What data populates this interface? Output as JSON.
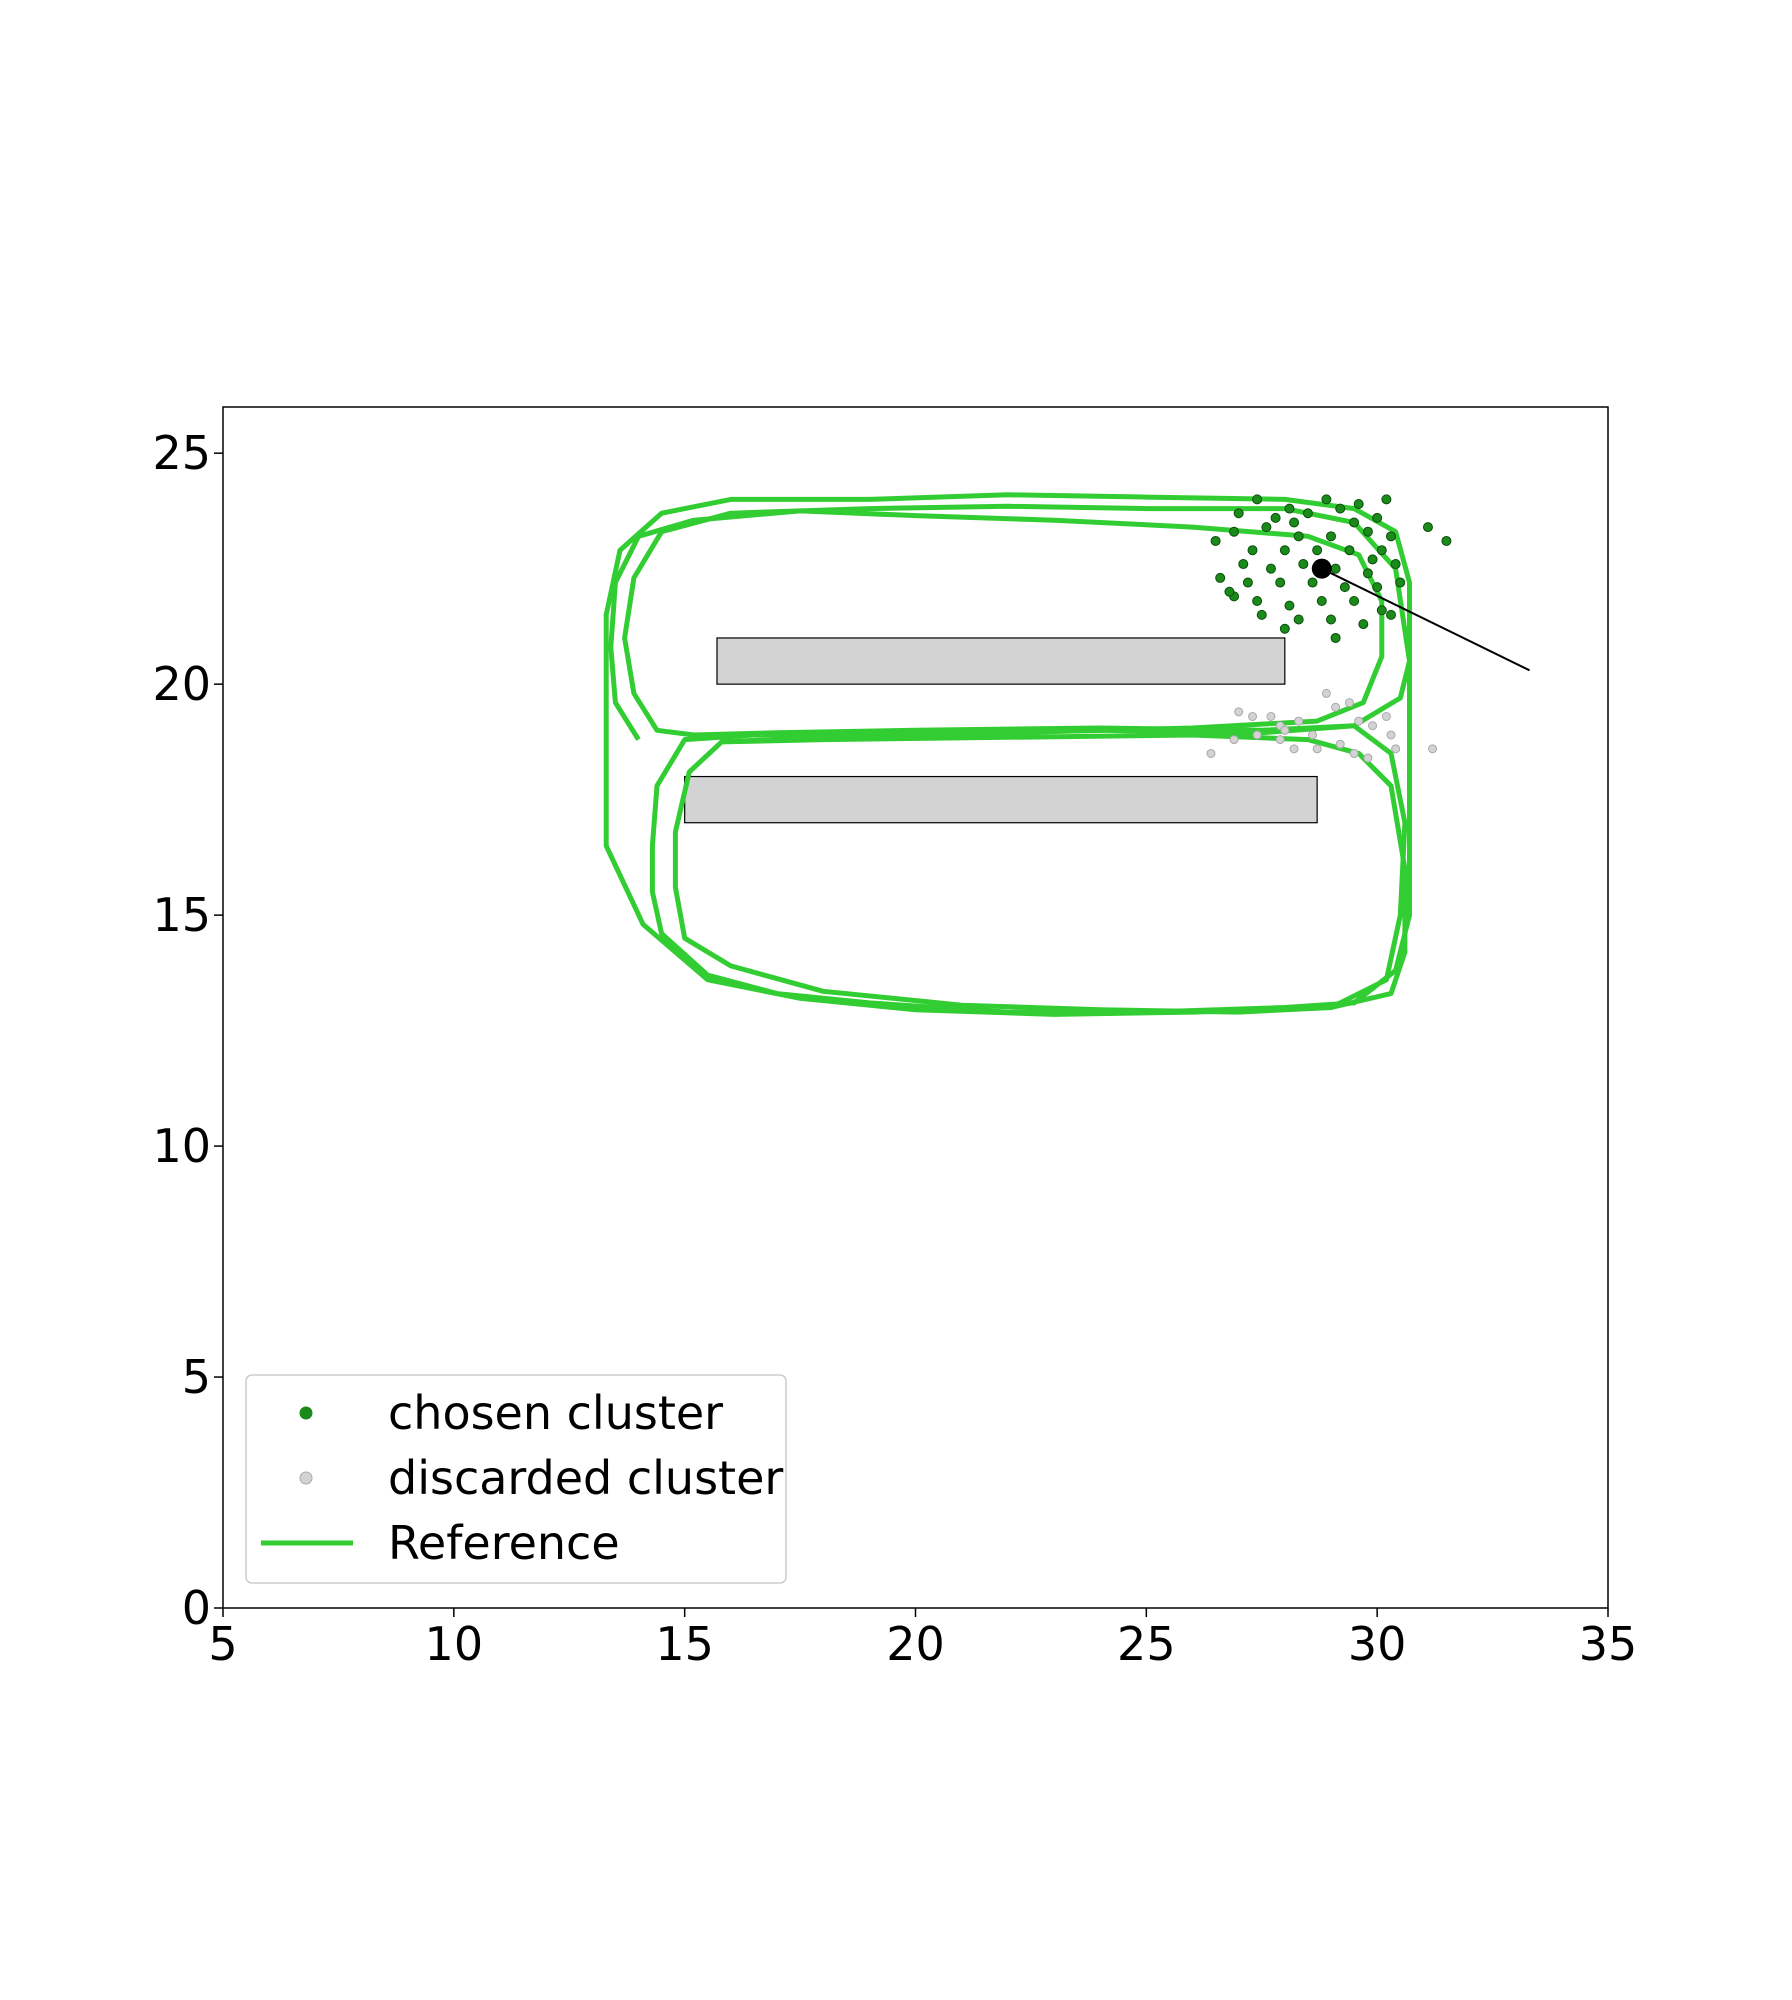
{
  "chart_data": {
    "type": "scatter",
    "title": "",
    "xlabel": "",
    "ylabel": "",
    "xlim": [
      5,
      35
    ],
    "ylim": [
      0,
      26
    ],
    "xticks": [
      5,
      10,
      15,
      20,
      25,
      30,
      35
    ],
    "yticks": [
      0,
      5,
      10,
      15,
      20,
      25
    ],
    "grid": false,
    "legend_position": "lower-left",
    "legend": [
      {
        "label": "chosen cluster",
        "kind": "marker",
        "color": "#1a8a1a"
      },
      {
        "label": "discarded cluster",
        "kind": "marker",
        "color": "#d3d3d3"
      },
      {
        "label": "Reference",
        "kind": "line",
        "color": "#32cd32"
      }
    ],
    "obstacles": [
      {
        "x0": 15.7,
        "y0": 20.0,
        "x1": 28.0,
        "y1": 21.0,
        "fill": "#d3d3d3"
      },
      {
        "x0": 15.0,
        "y0": 17.0,
        "x1": 28.7,
        "y1": 18.0,
        "fill": "#d3d3d3"
      }
    ],
    "estimate": {
      "x": 28.8,
      "y": 22.5,
      "heading_end": [
        33.3,
        20.3
      ],
      "color": "#000000"
    },
    "series": [
      {
        "name": "Reference",
        "color": "#32cd32",
        "points": [
          [
            13.3,
            19.8
          ],
          [
            13.3,
            21.5
          ],
          [
            13.6,
            22.9
          ],
          [
            14.5,
            23.7
          ],
          [
            16.0,
            24.0
          ],
          [
            19.0,
            24.0
          ],
          [
            22.0,
            24.1
          ],
          [
            25.0,
            24.05
          ],
          [
            28.0,
            24.0
          ],
          [
            29.5,
            23.8
          ],
          [
            30.4,
            23.3
          ],
          [
            30.7,
            22.2
          ],
          [
            30.7,
            20.5
          ],
          [
            30.5,
            19.7
          ],
          [
            29.5,
            19.1
          ],
          [
            27.5,
            18.95
          ],
          [
            24.0,
            19.0
          ],
          [
            20.0,
            18.95
          ],
          [
            16.5,
            18.9
          ],
          [
            15.0,
            18.8
          ],
          [
            14.4,
            17.8
          ],
          [
            14.3,
            16.5
          ],
          [
            14.3,
            15.5
          ],
          [
            14.5,
            14.6
          ],
          [
            15.5,
            13.7
          ],
          [
            17.0,
            13.3
          ],
          [
            19.0,
            13.1
          ],
          [
            22.0,
            12.9
          ],
          [
            25.0,
            12.9
          ],
          [
            28.0,
            13.0
          ],
          [
            29.5,
            13.1
          ],
          [
            30.4,
            13.8
          ],
          [
            30.7,
            15.0
          ],
          [
            30.7,
            18.0
          ],
          [
            30.7,
            20.5
          ],
          [
            30.4,
            22.5
          ],
          [
            29.5,
            23.5
          ],
          [
            28.0,
            23.8
          ],
          [
            25.0,
            23.8
          ],
          [
            22.0,
            23.85
          ],
          [
            19.0,
            23.8
          ],
          [
            16.0,
            23.7
          ],
          [
            14.5,
            23.3
          ],
          [
            13.9,
            22.3
          ],
          [
            13.7,
            21.0
          ],
          [
            13.9,
            19.8
          ],
          [
            14.4,
            19.0
          ],
          [
            15.2,
            18.9
          ],
          [
            17.0,
            18.95
          ],
          [
            20.0,
            19.0
          ],
          [
            24.0,
            19.05
          ],
          [
            27.5,
            19.0
          ],
          [
            29.5,
            19.1
          ],
          [
            30.3,
            18.5
          ],
          [
            30.6,
            17.0
          ],
          [
            30.5,
            15.0
          ],
          [
            30.2,
            13.6
          ],
          [
            29.0,
            13.0
          ],
          [
            26.0,
            12.9
          ],
          [
            23.0,
            12.85
          ],
          [
            20.0,
            12.95
          ],
          [
            17.5,
            13.2
          ],
          [
            15.5,
            13.6
          ],
          [
            14.1,
            14.8
          ],
          [
            13.3,
            16.5
          ],
          [
            13.3,
            18.0
          ],
          [
            13.3,
            19.8
          ]
        ]
      },
      {
        "name": "Reference",
        "color": "#32cd32",
        "points": [
          [
            14.0,
            18.8
          ],
          [
            13.5,
            19.6
          ],
          [
            13.4,
            20.8
          ],
          [
            13.5,
            22.2
          ],
          [
            14.0,
            23.2
          ],
          [
            15.2,
            23.55
          ],
          [
            17.5,
            23.75
          ],
          [
            20.0,
            23.65
          ],
          [
            23.0,
            23.55
          ],
          [
            26.0,
            23.4
          ],
          [
            28.5,
            23.2
          ],
          [
            29.6,
            22.8
          ],
          [
            30.1,
            21.8
          ],
          [
            30.1,
            20.6
          ],
          [
            29.7,
            19.6
          ],
          [
            28.7,
            19.2
          ],
          [
            26.0,
            19.05
          ],
          [
            22.0,
            18.95
          ],
          [
            18.0,
            18.85
          ],
          [
            15.8,
            18.75
          ],
          [
            15.1,
            18.1
          ],
          [
            14.8,
            16.8
          ],
          [
            14.8,
            15.6
          ],
          [
            15.0,
            14.5
          ],
          [
            16.0,
            13.9
          ],
          [
            18.0,
            13.35
          ],
          [
            21.0,
            13.05
          ],
          [
            24.0,
            12.95
          ],
          [
            27.0,
            12.9
          ],
          [
            29.0,
            13.0
          ],
          [
            30.3,
            13.3
          ],
          [
            30.6,
            14.2
          ],
          [
            30.6,
            16.0
          ],
          [
            30.3,
            17.8
          ],
          [
            29.6,
            18.5
          ],
          [
            28.5,
            18.8
          ],
          [
            26.0,
            18.9
          ],
          [
            22.0,
            18.85
          ],
          [
            18.0,
            18.8
          ],
          [
            15.8,
            18.75
          ]
        ]
      }
    ],
    "chosen_cluster": [
      [
        27.4,
        24.0
      ],
      [
        28.1,
        23.8
      ],
      [
        27.0,
        23.7
      ],
      [
        27.8,
        23.6
      ],
      [
        28.5,
        23.7
      ],
      [
        29.2,
        23.8
      ],
      [
        29.5,
        23.5
      ],
      [
        30.0,
        23.6
      ],
      [
        30.2,
        24.0
      ],
      [
        29.8,
        23.3
      ],
      [
        29.0,
        23.2
      ],
      [
        28.3,
        23.2
      ],
      [
        27.6,
        23.4
      ],
      [
        26.9,
        23.3
      ],
      [
        26.5,
        23.1
      ],
      [
        27.3,
        22.9
      ],
      [
        28.0,
        22.9
      ],
      [
        28.7,
        22.9
      ],
      [
        29.4,
        22.9
      ],
      [
        30.1,
        22.9
      ],
      [
        30.4,
        22.6
      ],
      [
        29.8,
        22.4
      ],
      [
        29.1,
        22.5
      ],
      [
        28.4,
        22.6
      ],
      [
        27.7,
        22.5
      ],
      [
        27.1,
        22.6
      ],
      [
        26.6,
        22.3
      ],
      [
        27.2,
        22.2
      ],
      [
        27.9,
        22.2
      ],
      [
        28.6,
        22.2
      ],
      [
        29.3,
        22.1
      ],
      [
        30.0,
        22.1
      ],
      [
        30.5,
        22.2
      ],
      [
        30.1,
        21.6
      ],
      [
        29.5,
        21.8
      ],
      [
        28.8,
        21.8
      ],
      [
        28.1,
        21.7
      ],
      [
        27.4,
        21.8
      ],
      [
        26.9,
        21.9
      ],
      [
        27.5,
        21.5
      ],
      [
        28.3,
        21.4
      ],
      [
        29.0,
        21.4
      ],
      [
        29.7,
        21.3
      ],
      [
        30.3,
        21.5
      ],
      [
        29.1,
        21.0
      ],
      [
        28.0,
        21.2
      ],
      [
        31.1,
        23.4
      ],
      [
        31.5,
        23.1
      ],
      [
        28.9,
        24.0
      ],
      [
        29.6,
        23.9
      ],
      [
        30.3,
        23.2
      ],
      [
        26.8,
        22.0
      ],
      [
        28.2,
        23.5
      ],
      [
        29.9,
        22.7
      ]
    ],
    "discarded_cluster": [
      [
        27.0,
        19.4
      ],
      [
        27.3,
        19.3
      ],
      [
        27.7,
        19.3
      ],
      [
        27.9,
        18.8
      ],
      [
        28.2,
        18.6
      ],
      [
        28.6,
        18.9
      ],
      [
        28.9,
        19.8
      ],
      [
        29.1,
        19.5
      ],
      [
        29.4,
        19.6
      ],
      [
        29.6,
        19.2
      ],
      [
        29.9,
        19.1
      ],
      [
        30.2,
        19.3
      ],
      [
        30.3,
        18.9
      ],
      [
        30.4,
        18.6
      ],
      [
        29.8,
        18.4
      ],
      [
        29.2,
        18.7
      ],
      [
        28.7,
        18.6
      ],
      [
        28.3,
        19.2
      ],
      [
        27.9,
        19.1
      ],
      [
        27.4,
        18.9
      ],
      [
        26.4,
        18.5
      ],
      [
        26.9,
        18.8
      ],
      [
        31.2,
        18.6
      ],
      [
        29.5,
        18.5
      ],
      [
        28.0,
        19.0
      ]
    ]
  }
}
